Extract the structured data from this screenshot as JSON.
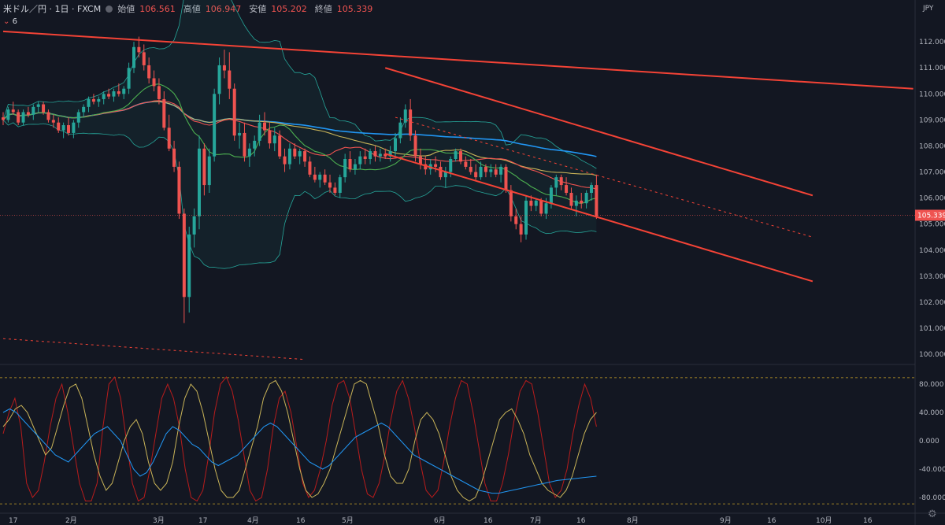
{
  "header": {
    "symbol": "米ドル／円 · 1日 · FXCM",
    "open_label": "始値",
    "open": "106.561",
    "high_label": "高値",
    "high": "106.947",
    "low_label": "安値",
    "low": "105.202",
    "close_label": "終値",
    "close": "105.339",
    "indicator_label": "6",
    "indicator_prefix": "⌄ ",
    "currency": "JPY"
  },
  "colors": {
    "background": "#131722",
    "up": "#26a69a",
    "down": "#ef5350",
    "trendline": "#f44336",
    "sma_blue": "#2196f3",
    "sma_yellow": "#c9b458",
    "sma_red": "#ef5350",
    "sma_green": "#4caf50",
    "bb": "#26a69a",
    "osc_red": "#b71c1c",
    "osc_yellow": "#c9b458",
    "osc_blue": "#2196f3",
    "grid": "#1e222d"
  },
  "icons": {
    "settings": "gear-icon",
    "status_dot": "circle-icon"
  },
  "chart_data": [
    {
      "type": "candlestick",
      "symbol": "USD/JPY",
      "timeframe": "1D",
      "ylim": [
        99.7,
        112.7
      ],
      "grid": false,
      "x_ticks": [
        "17",
        "2月",
        "3月",
        "17",
        "4月",
        "16",
        "5月",
        "6月",
        "16",
        "7月",
        "16",
        "8月",
        "9月",
        "16",
        "10月",
        "16"
      ],
      "y_ticks": [
        "100.000",
        "101.000",
        "102.000",
        "103.000",
        "104.000",
        "105.000",
        "106.000",
        "107.000",
        "108.000",
        "109.000",
        "110.000",
        "111.000",
        "112.000"
      ],
      "last_price": "105.339",
      "candles": [
        [
          109.1,
          109.3,
          108.8,
          109.0
        ],
        [
          109.0,
          109.5,
          108.9,
          109.4
        ],
        [
          109.4,
          109.7,
          109.2,
          109.3
        ],
        [
          109.3,
          109.4,
          108.8,
          108.9
        ],
        [
          108.9,
          109.4,
          108.8,
          109.3
        ],
        [
          109.3,
          109.5,
          109.1,
          109.2
        ],
        [
          109.2,
          109.6,
          109.0,
          109.5
        ],
        [
          109.5,
          109.7,
          109.3,
          109.6
        ],
        [
          109.6,
          109.7,
          109.2,
          109.3
        ],
        [
          109.3,
          109.4,
          108.9,
          109.0
        ],
        [
          109.0,
          109.2,
          108.7,
          108.9
        ],
        [
          108.9,
          109.1,
          108.5,
          108.6
        ],
        [
          108.6,
          108.9,
          108.3,
          108.8
        ],
        [
          108.8,
          109.1,
          108.4,
          108.5
        ],
        [
          108.5,
          109.0,
          108.3,
          108.9
        ],
        [
          108.9,
          109.4,
          108.7,
          109.3
        ],
        [
          109.3,
          109.6,
          109.1,
          109.5
        ],
        [
          109.5,
          109.9,
          109.3,
          109.8
        ],
        [
          109.8,
          110.0,
          109.6,
          109.7
        ],
        [
          109.7,
          109.9,
          109.5,
          109.8
        ],
        [
          109.8,
          110.1,
          109.6,
          110.0
        ],
        [
          110.0,
          110.2,
          109.8,
          109.9
        ],
        [
          109.9,
          110.2,
          109.7,
          110.1
        ],
        [
          110.1,
          110.4,
          109.9,
          110.0
        ],
        [
          110.0,
          110.3,
          109.8,
          110.2
        ],
        [
          110.2,
          111.2,
          110.0,
          111.0
        ],
        [
          111.0,
          112.0,
          110.8,
          111.8
        ],
        [
          111.8,
          112.2,
          111.4,
          111.6
        ],
        [
          111.6,
          111.9,
          110.9,
          111.1
        ],
        [
          111.1,
          111.4,
          110.4,
          110.6
        ],
        [
          110.6,
          110.9,
          110.1,
          110.3
        ],
        [
          110.3,
          110.6,
          109.6,
          109.8
        ],
        [
          109.8,
          110.1,
          108.6,
          108.7
        ],
        [
          108.7,
          109.2,
          107.8,
          107.9
        ],
        [
          107.9,
          108.2,
          107.0,
          107.2
        ],
        [
          107.2,
          107.4,
          105.2,
          105.4
        ],
        [
          105.4,
          105.6,
          101.2,
          102.2
        ],
        [
          102.2,
          104.9,
          101.6,
          104.6
        ],
        [
          104.6,
          105.6,
          104.1,
          105.3
        ],
        [
          105.3,
          108.4,
          104.8,
          107.9
        ],
        [
          107.9,
          108.1,
          106.1,
          106.5
        ],
        [
          106.5,
          107.9,
          106.2,
          107.6
        ],
        [
          107.6,
          110.2,
          107.4,
          110.0
        ],
        [
          110.0,
          111.4,
          109.6,
          111.1
        ],
        [
          111.1,
          111.7,
          110.6,
          110.9
        ],
        [
          110.9,
          111.6,
          109.8,
          110.2
        ],
        [
          110.2,
          110.4,
          108.2,
          108.4
        ],
        [
          108.4,
          108.9,
          107.9,
          108.5
        ],
        [
          108.5,
          108.9,
          107.4,
          107.6
        ],
        [
          107.6,
          108.1,
          107.2,
          107.9
        ],
        [
          107.9,
          108.4,
          107.6,
          108.2
        ],
        [
          108.2,
          109.2,
          108.0,
          108.9
        ],
        [
          108.9,
          109.3,
          108.4,
          108.6
        ],
        [
          108.6,
          108.9,
          107.9,
          108.1
        ],
        [
          108.1,
          108.7,
          107.8,
          108.4
        ],
        [
          108.4,
          108.6,
          107.5,
          107.6
        ],
        [
          107.6,
          107.9,
          107.0,
          107.3
        ],
        [
          107.3,
          108.1,
          107.1,
          107.9
        ],
        [
          107.9,
          108.1,
          107.5,
          107.6
        ],
        [
          107.6,
          107.9,
          107.3,
          107.8
        ],
        [
          107.8,
          107.9,
          107.2,
          107.4
        ],
        [
          107.4,
          107.6,
          106.8,
          106.9
        ],
        [
          106.9,
          107.2,
          106.6,
          106.7
        ],
        [
          106.7,
          107.0,
          106.4,
          106.9
        ],
        [
          106.9,
          107.1,
          106.5,
          106.6
        ],
        [
          106.6,
          106.9,
          106.2,
          106.4
        ],
        [
          106.4,
          106.6,
          106.1,
          106.2
        ],
        [
          106.2,
          106.9,
          106.0,
          106.8
        ],
        [
          106.8,
          107.7,
          106.6,
          107.5
        ],
        [
          107.5,
          107.8,
          107.0,
          107.1
        ],
        [
          107.1,
          107.5,
          106.9,
          107.3
        ],
        [
          107.3,
          107.8,
          107.1,
          107.6
        ],
        [
          107.6,
          107.9,
          107.3,
          107.5
        ],
        [
          107.5,
          107.9,
          107.3,
          107.8
        ],
        [
          107.8,
          108.0,
          107.4,
          107.6
        ],
        [
          107.6,
          107.9,
          107.4,
          107.7
        ],
        [
          107.7,
          107.9,
          107.5,
          107.6
        ],
        [
          107.6,
          108.0,
          107.4,
          107.8
        ],
        [
          107.8,
          108.5,
          107.6,
          108.3
        ],
        [
          108.3,
          109.1,
          108.1,
          108.9
        ],
        [
          108.9,
          109.6,
          108.7,
          109.4
        ],
        [
          109.4,
          109.8,
          108.2,
          108.4
        ],
        [
          108.4,
          108.6,
          107.4,
          107.6
        ],
        [
          107.6,
          107.9,
          107.1,
          107.3
        ],
        [
          107.3,
          107.6,
          106.9,
          107.1
        ],
        [
          107.1,
          107.5,
          106.9,
          107.3
        ],
        [
          107.3,
          107.6,
          107.0,
          107.2
        ],
        [
          107.2,
          107.4,
          106.7,
          106.8
        ],
        [
          106.8,
          107.2,
          106.4,
          107.0
        ],
        [
          107.0,
          107.6,
          106.8,
          107.5
        ],
        [
          107.5,
          107.9,
          107.4,
          107.8
        ],
        [
          107.8,
          107.9,
          107.3,
          107.4
        ],
        [
          107.4,
          107.6,
          107.1,
          107.2
        ],
        [
          107.2,
          107.5,
          106.9,
          107.0
        ],
        [
          107.0,
          107.3,
          106.7,
          106.8
        ],
        [
          106.8,
          107.4,
          106.7,
          107.2
        ],
        [
          107.2,
          107.3,
          106.8,
          107.0
        ],
        [
          107.0,
          107.3,
          106.8,
          107.1
        ],
        [
          107.1,
          107.3,
          106.8,
          106.9
        ],
        [
          106.9,
          107.3,
          106.6,
          107.2
        ],
        [
          107.2,
          107.3,
          106.2,
          106.3
        ],
        [
          106.3,
          106.5,
          105.1,
          105.3
        ],
        [
          105.3,
          105.6,
          104.8,
          105.0
        ],
        [
          105.0,
          105.3,
          104.3,
          104.6
        ],
        [
          104.6,
          106.1,
          104.4,
          105.9
        ],
        [
          105.9,
          106.1,
          105.5,
          105.7
        ],
        [
          105.7,
          106.0,
          105.5,
          105.9
        ],
        [
          105.9,
          106.0,
          105.3,
          105.4
        ],
        [
          105.4,
          106.0,
          105.2,
          105.8
        ],
        [
          105.8,
          106.5,
          105.6,
          106.4
        ],
        [
          106.4,
          106.9,
          106.1,
          106.8
        ],
        [
          106.8,
          106.9,
          106.3,
          106.5
        ],
        [
          106.5,
          106.8,
          106.1,
          106.2
        ],
        [
          106.2,
          106.4,
          105.6,
          105.7
        ],
        [
          105.7,
          106.1,
          105.3,
          105.9
        ],
        [
          105.9,
          106.2,
          105.6,
          105.8
        ],
        [
          105.8,
          106.3,
          105.6,
          106.2
        ],
        [
          106.2,
          106.6,
          105.9,
          106.5
        ],
        [
          106.5,
          106.9,
          105.2,
          105.3
        ]
      ],
      "trendlines": [
        {
          "from": [
            0,
            112.4
          ],
          "to": [
            181,
            110.2
          ]
        },
        {
          "from": [
            76,
            111.0
          ],
          "to": [
            161,
            106.1
          ]
        },
        {
          "from": [
            76,
            107.7
          ],
          "to": [
            161,
            102.8
          ]
        },
        {
          "from": [
            78,
            109.1
          ],
          "to": [
            161,
            104.5
          ],
          "dashed": true
        },
        {
          "from": [
            0,
            100.6
          ],
          "to": [
            60,
            99.8
          ],
          "dashed": true
        }
      ]
    },
    {
      "type": "line",
      "name": "oscillator",
      "ylim": [
        -100,
        100
      ],
      "y_ticks": [
        "80.000",
        "40.000",
        "0.000",
        "-40.000",
        "-80.000"
      ],
      "levels": [
        89,
        -89
      ],
      "series": [
        {
          "color": "#b71c1c",
          "values": [
            10,
            40,
            60,
            20,
            -60,
            -80,
            -70,
            -30,
            20,
            60,
            80,
            40,
            -10,
            -60,
            -85,
            -85,
            -60,
            20,
            80,
            90,
            60,
            0,
            -60,
            -85,
            -80,
            -40,
            10,
            60,
            80,
            60,
            20,
            -40,
            -80,
            -85,
            -70,
            -20,
            40,
            80,
            90,
            70,
            30,
            -20,
            -70,
            -85,
            -80,
            -40,
            20,
            60,
            70,
            40,
            -10,
            -60,
            -80,
            -70,
            -40,
            0,
            50,
            80,
            85,
            60,
            10,
            -40,
            -75,
            -80,
            -60,
            -20,
            30,
            70,
            85,
            60,
            20,
            -30,
            -70,
            -80,
            -70,
            -30,
            20,
            60,
            85,
            80,
            40,
            -10,
            -60,
            -85,
            -85,
            -60,
            -20,
            30,
            70,
            85,
            80,
            40,
            -10,
            -60,
            -80,
            -70,
            -40,
            10,
            50,
            80,
            60,
            20
          ]
        },
        {
          "color": "#c9b458",
          "values": [
            20,
            30,
            45,
            50,
            40,
            20,
            0,
            -20,
            -10,
            20,
            50,
            75,
            80,
            60,
            20,
            -20,
            -50,
            -70,
            -60,
            -30,
            0,
            20,
            30,
            10,
            -30,
            -60,
            -70,
            -60,
            -30,
            20,
            60,
            80,
            70,
            40,
            0,
            -40,
            -70,
            -80,
            -80,
            -70,
            -40,
            -10,
            20,
            60,
            80,
            85,
            70,
            40,
            0,
            -40,
            -70,
            -80,
            -75,
            -60,
            -40,
            -10,
            20,
            50,
            80,
            85,
            80,
            50,
            20,
            -20,
            -50,
            -60,
            -60,
            -40,
            0,
            30,
            40,
            30,
            10,
            -20,
            -50,
            -70,
            -80,
            -85,
            -80,
            -60,
            -30,
            0,
            30,
            40,
            45,
            30,
            10,
            -20,
            -40,
            -60,
            -70,
            -75,
            -80,
            -70,
            -50,
            -20,
            10,
            30,
            40
          ]
        },
        {
          "color": "#2196f3",
          "values": [
            40,
            45,
            40,
            30,
            20,
            10,
            0,
            -10,
            -20,
            -25,
            -30,
            -20,
            -10,
            0,
            10,
            15,
            20,
            10,
            0,
            -20,
            -40,
            -50,
            -45,
            -30,
            -10,
            10,
            20,
            15,
            5,
            -5,
            -10,
            -20,
            -30,
            -35,
            -30,
            -25,
            -20,
            -10,
            0,
            10,
            20,
            25,
            20,
            10,
            0,
            -10,
            -20,
            -30,
            -35,
            -40,
            -35,
            -25,
            -15,
            -5,
            5,
            10,
            15,
            20,
            25,
            20,
            10,
            0,
            -10,
            -20,
            -25,
            -30,
            -35,
            -40,
            -45,
            -50,
            -55,
            -60,
            -65,
            -70,
            -72,
            -74,
            -74,
            -72,
            -70,
            -68,
            -66,
            -64,
            -62,
            -60,
            -58,
            -56,
            -55,
            -54,
            -53,
            -52,
            -51,
            -50
          ]
        }
      ]
    }
  ]
}
